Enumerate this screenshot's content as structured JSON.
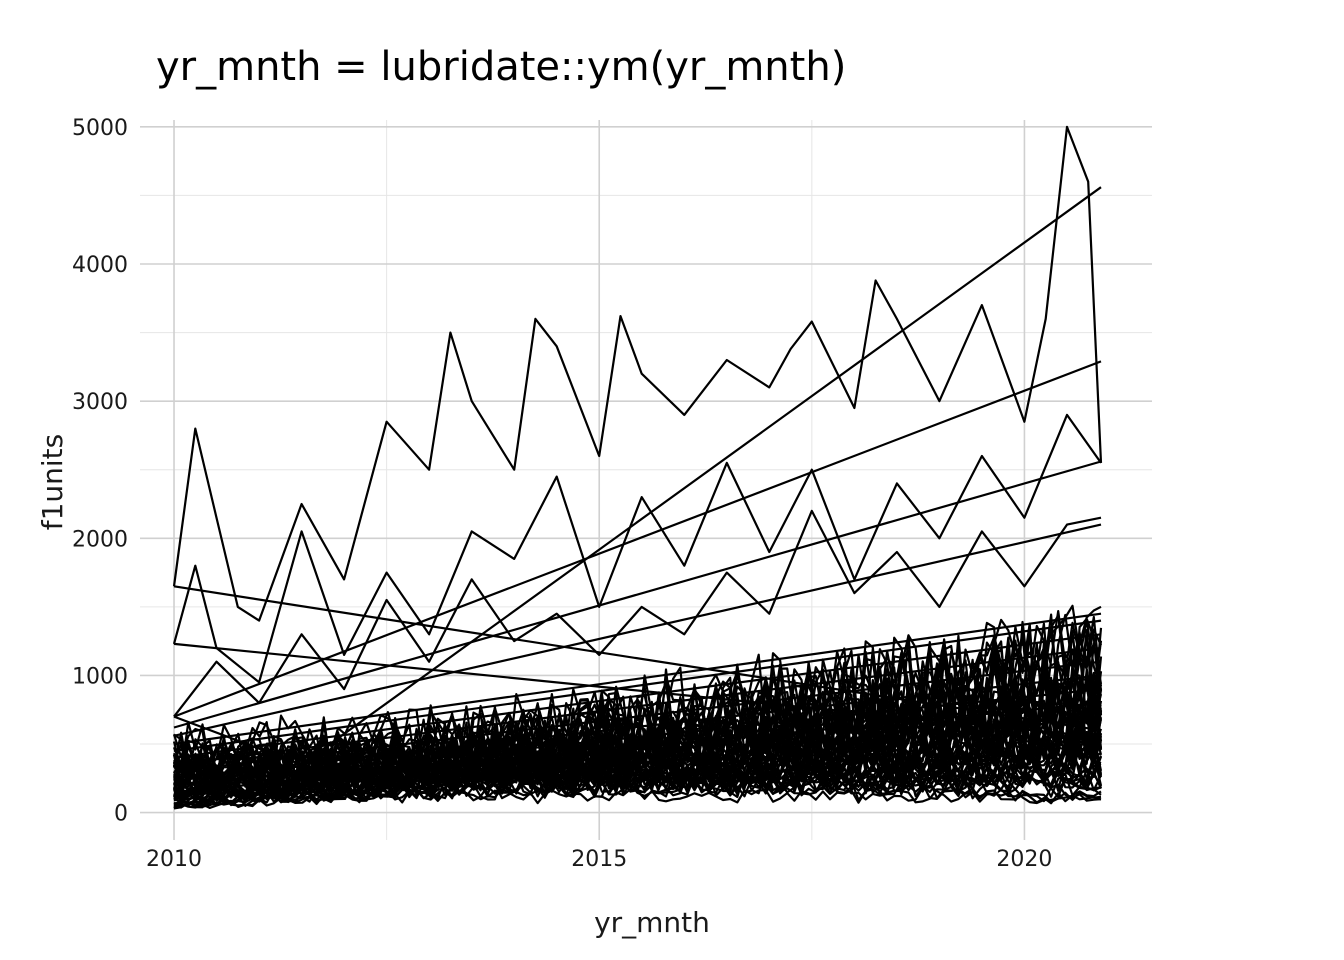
{
  "chart_data": {
    "type": "line",
    "title": "yr_mnth = lubridate::ym(yr_mnth)",
    "xlabel": "yr_mnth",
    "ylabel": "f1units",
    "x_ticks": [
      "2010",
      "2015",
      "2020"
    ],
    "y_ticks": [
      "0",
      "1000",
      "2000",
      "3000",
      "4000",
      "5000"
    ],
    "xlim": [
      2009.6,
      2021.5
    ],
    "ylim": [
      -200,
      5050
    ],
    "grid": true,
    "line_color": "#000000",
    "series": [
      {
        "x": [
          2010.0,
          2010.25,
          2010.5,
          2010.75,
          2011.0,
          2011.5,
          2012.0,
          2012.5,
          2013.0,
          2013.25,
          2013.5,
          2014.0,
          2014.25,
          2014.5,
          2015.0,
          2015.25,
          2015.5,
          2016.0,
          2016.5,
          2017.0,
          2017.25,
          2017.5,
          2018.0,
          2018.25,
          2018.5,
          2019.0,
          2019.5,
          2020.0,
          2020.25,
          2020.5,
          2020.75,
          2020.9
        ],
        "y": [
          1650,
          2800,
          2150,
          1500,
          1400,
          2250,
          1700,
          2850,
          2500,
          3500,
          3000,
          2500,
          3600,
          3400,
          2600,
          3620,
          3200,
          2900,
          3300,
          3100,
          3380,
          3580,
          2950,
          3880,
          3600,
          3000,
          3700,
          2850,
          3600,
          5000,
          4600,
          2550
        ]
      },
      {
        "x": [
          2010.0,
          2010.25,
          2010.5,
          2011.0,
          2011.5,
          2012.0,
          2012.5,
          2013.0,
          2013.5,
          2014.0,
          2014.5,
          2015.0,
          2015.5,
          2016.0,
          2016.5,
          2017.0,
          2017.5,
          2018.0,
          2018.5,
          2019.0,
          2019.5,
          2020.0,
          2020.5,
          2020.9
        ],
        "y": [
          1230,
          1800,
          1200,
          950,
          2050,
          1150,
          1750,
          1300,
          2050,
          1850,
          2450,
          1500,
          2300,
          1800,
          2550,
          1900,
          2500,
          1700,
          2400,
          2000,
          2600,
          2150,
          2900,
          2550
        ]
      },
      {
        "x": [
          2010.0,
          2010.5,
          2011.0,
          2011.5,
          2012.0,
          2012.5,
          2013.0,
          2013.5,
          2014.0,
          2014.5,
          2015.0,
          2015.5,
          2016.0,
          2016.5,
          2017.0,
          2017.5,
          2018.0,
          2018.5,
          2019.0,
          2019.5,
          2020.0,
          2020.5,
          2020.9
        ],
        "y": [
          700,
          1100,
          800,
          1300,
          900,
          1550,
          1100,
          1700,
          1250,
          1450,
          1150,
          1500,
          1300,
          1750,
          1450,
          2200,
          1600,
          1900,
          1500,
          2050,
          1650,
          2100,
          2150
        ]
      },
      {
        "x": [
          2010.0,
          2020.9
        ],
        "y": [
          1650,
          600
        ]
      },
      {
        "x": [
          2010.0,
          2020.9
        ],
        "y": [
          1230,
          550
        ]
      },
      {
        "x": [
          2010.0,
          2011.5,
          2020.9
        ],
        "y": [
          700,
          350,
          4560
        ]
      },
      {
        "x": [
          2010.0,
          2020.9
        ],
        "y": [
          700,
          3290
        ]
      },
      {
        "x": [
          2010.0,
          2020.9
        ],
        "y": [
          620,
          2560
        ]
      },
      {
        "x": [
          2010.0,
          2020.9
        ],
        "y": [
          560,
          2100
        ]
      },
      {
        "x": [
          2010.0,
          2020.9
        ],
        "y": [
          500,
          1450
        ]
      },
      {
        "x": [
          2010.0,
          2020.9
        ],
        "y": [
          450,
          1400
        ]
      },
      {
        "x": [
          2010.0,
          2020.9
        ],
        "y": [
          400,
          1300
        ]
      },
      {
        "x": [
          2010.0,
          2020.9
        ],
        "y": [
          350,
          1200
        ]
      },
      {
        "x": [
          2010.0,
          2020.9
        ],
        "y": [
          300,
          1100
        ]
      },
      {
        "x": [
          2010.0,
          2020.9
        ],
        "y": [
          250,
          1000
        ]
      },
      {
        "x": [
          2010.0,
          2020.9
        ],
        "y": [
          200,
          900
        ]
      },
      {
        "x": [
          2010.0,
          2020.9
        ],
        "y": [
          150,
          800
        ]
      }
    ]
  }
}
